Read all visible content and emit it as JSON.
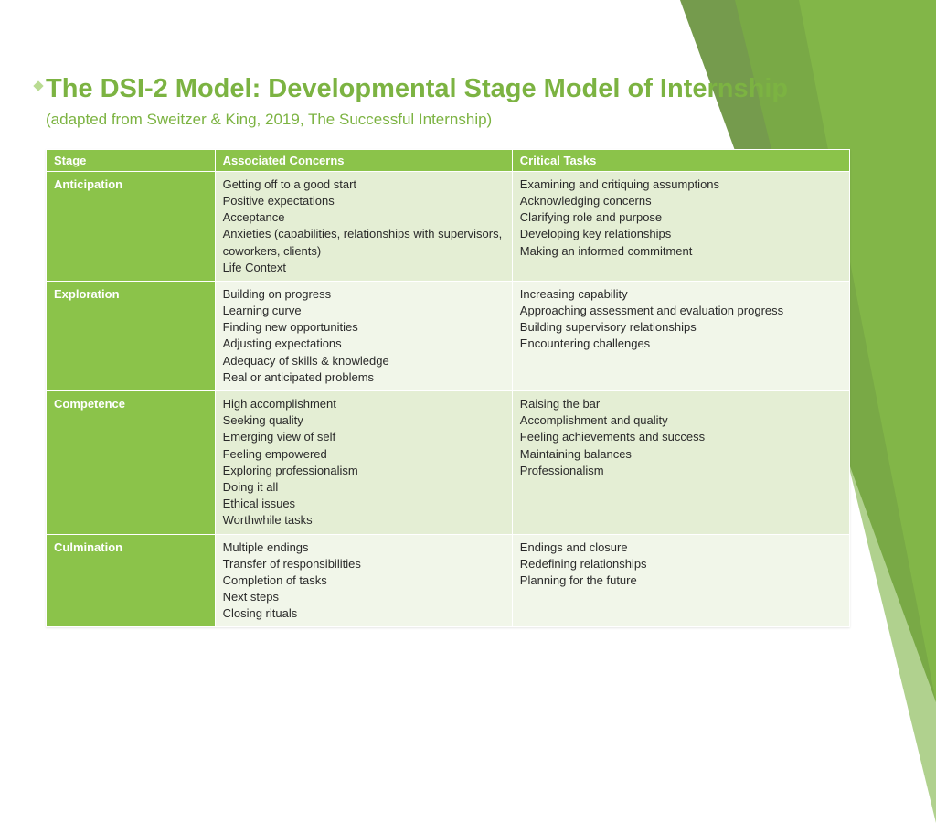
{
  "title": "The DSI-2 Model: Developmental Stage Model of Internship",
  "subtitle": "(adapted from Sweitzer & King, 2019, The Successful Internship)",
  "colors": {
    "accent": "#7cb342",
    "header_bg": "#8bc34a",
    "row_dark": "#e4eed4",
    "row_light": "#f1f6e9",
    "text": "#2a2a2a"
  },
  "table": {
    "columns": [
      "Stage",
      "Associated Concerns",
      "Critical Tasks"
    ],
    "rows": [
      {
        "stage": "Anticipation",
        "concerns": "Getting off to a good start\nPositive expectations\nAcceptance\nAnxieties (capabilities, relationships with supervisors, coworkers, clients)\nLife Context",
        "tasks": "Examining and critiquing assumptions\nAcknowledging concerns\nClarifying role and purpose\nDeveloping key relationships\nMaking an informed commitment"
      },
      {
        "stage": "Exploration",
        "concerns": "Building on progress\nLearning curve\nFinding new opportunities\nAdjusting expectations\nAdequacy of skills & knowledge\nReal or anticipated problems",
        "tasks": "Increasing capability\nApproaching assessment and evaluation progress\nBuilding  supervisory relationships\nEncountering challenges"
      },
      {
        "stage": "Competence",
        "concerns": "High accomplishment\nSeeking quality\nEmerging view of self\nFeeling empowered\nExploring professionalism\nDoing it all\nEthical issues\nWorthwhile tasks",
        "tasks": "Raising the bar\nAccomplishment and quality\nFeeling achievements and success\nMaintaining balances\nProfessionalism"
      },
      {
        "stage": "Culmination",
        "concerns": "Multiple endings\nTransfer of responsibilities\nCompletion of tasks\nNext steps\nClosing rituals",
        "tasks": "Endings and closure\nRedefining relationships\nPlanning for the future"
      }
    ]
  }
}
